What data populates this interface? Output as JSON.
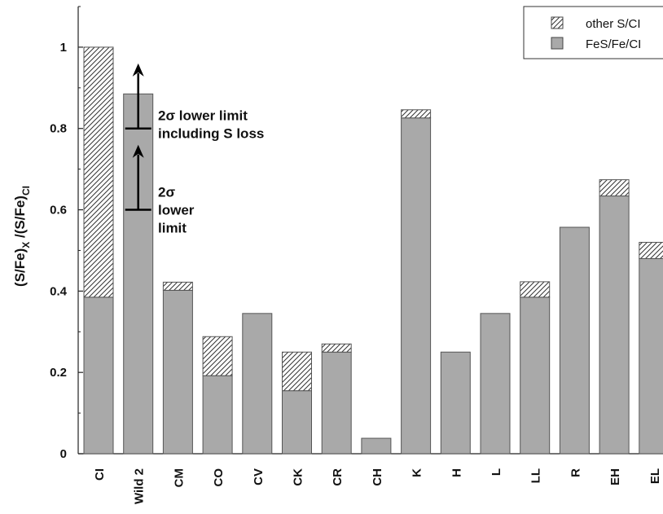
{
  "chart_data": {
    "type": "bar",
    "stacked": true,
    "categories": [
      "CI",
      "Wild 2",
      "CM",
      "CO",
      "CV",
      "CK",
      "CR",
      "CH",
      "K",
      "H",
      "L",
      "LL",
      "R",
      "EH",
      "EL"
    ],
    "series": [
      {
        "name": "FeS/Fe/CI",
        "pattern": "solid",
        "color": "#a9a9a9",
        "values": [
          0.385,
          0.885,
          0.402,
          0.192,
          0.345,
          0.155,
          0.25,
          0.038,
          0.826,
          0.25,
          0.345,
          0.385,
          0.557,
          0.634,
          0.48
        ]
      },
      {
        "name": "other S/CI",
        "pattern": "diagonal-hatch",
        "color": "#ffffff",
        "values": [
          0.615,
          0,
          0.02,
          0.096,
          0,
          0.095,
          0.02,
          0,
          0.02,
          0,
          0,
          0.038,
          0,
          0.04,
          0.04
        ]
      }
    ],
    "ylabel_main": "(S/Fe)",
    "ylabel_sub1": "X",
    "ylabel_mid": " /(S/Fe)",
    "ylabel_sub2": "CI",
    "ylim": [
      0,
      1.1
    ],
    "yticks": [
      0,
      0.2,
      0.4,
      0.6,
      0.8,
      1
    ],
    "ytick_labels": [
      "0",
      "0.2",
      "0.4",
      "0.6",
      "0.8",
      "1"
    ],
    "legend_position": "top-right",
    "annotations": [
      {
        "lines": [
          "2σ lower limit",
          "including S loss"
        ],
        "value": 0.8
      },
      {
        "lines": [
          "2σ",
          "lower",
          "limit"
        ],
        "value": 0.6
      }
    ],
    "arrows": [
      {
        "category": "Wild 2",
        "from": 0.8,
        "to": 0.96
      },
      {
        "category": "Wild 2",
        "from": 0.6,
        "to": 0.76
      }
    ]
  }
}
